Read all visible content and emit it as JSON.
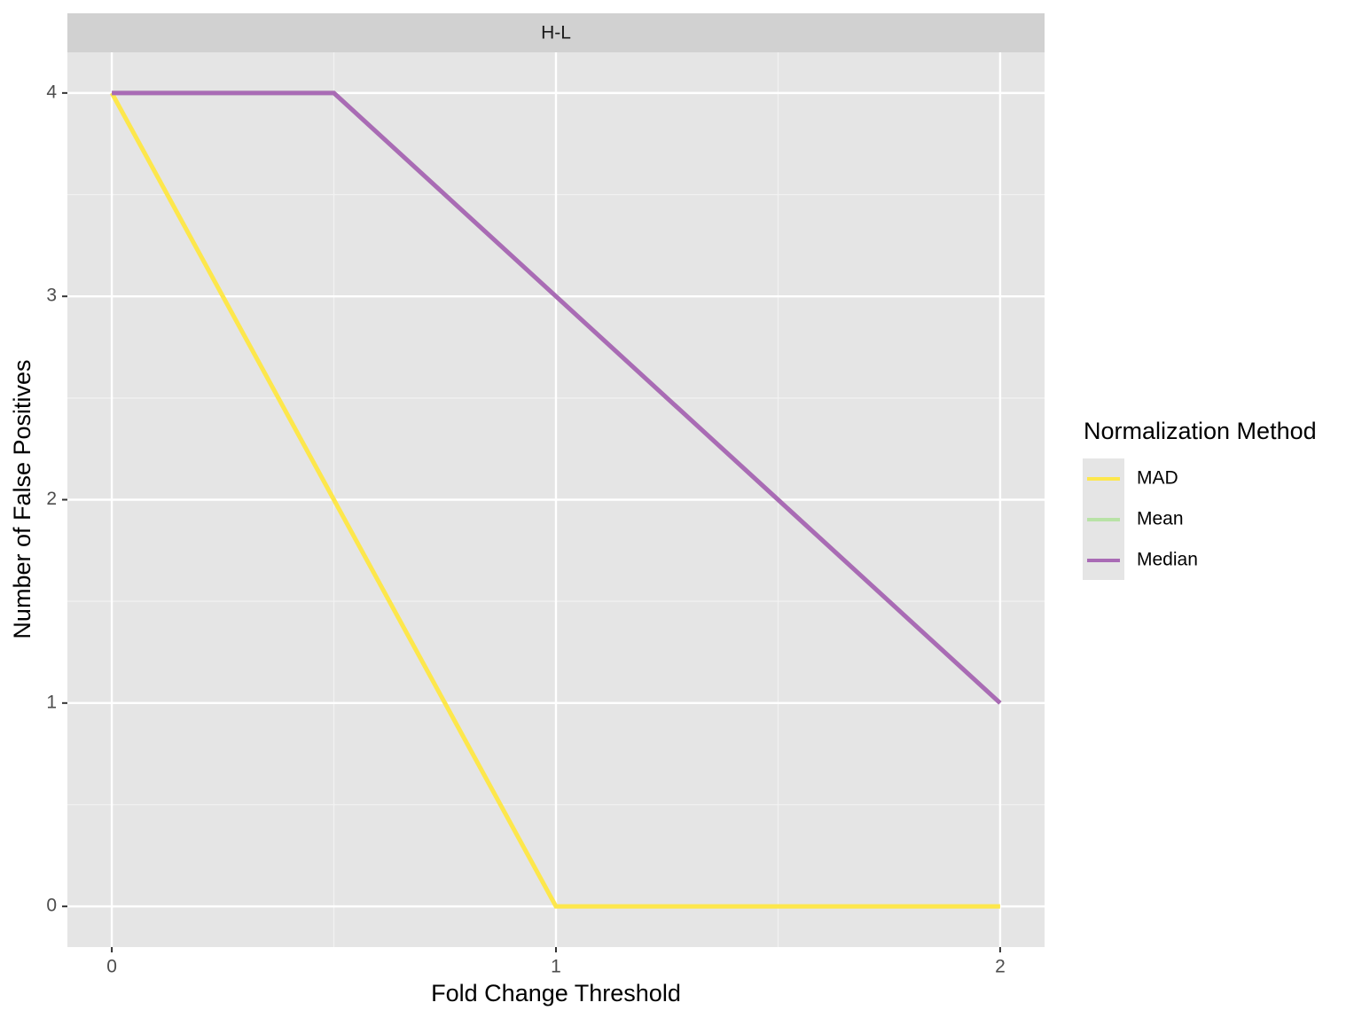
{
  "chart_data": {
    "type": "line",
    "strip": "H-L",
    "x_label": "Fold Change Threshold",
    "y_label": "Number of False Positives",
    "legend_title": "Normalization Method",
    "x": [
      0,
      0.5,
      1,
      1.5,
      2
    ],
    "series": [
      {
        "name": "MAD",
        "color": "#fde74c",
        "values": [
          4,
          2,
          0,
          0,
          0
        ]
      },
      {
        "name": "Mean",
        "color": "#b8e2a6",
        "values": [
          4,
          4,
          3,
          2,
          1
        ]
      },
      {
        "name": "Median",
        "color": "#a96bb5",
        "values": [
          4,
          4,
          3,
          2,
          1
        ]
      }
    ],
    "xlim": [
      -0.1,
      2.1
    ],
    "xticks": [
      0,
      1,
      2
    ],
    "x_minor_grid": [
      0.5,
      1.5
    ],
    "ylim": [
      -0.2,
      4.2
    ],
    "yticks": [
      0,
      1,
      2,
      3,
      4
    ],
    "y_minor_grid": [
      0.5,
      1.5,
      2.5,
      3.5
    ],
    "grid": true,
    "legend": "right"
  }
}
